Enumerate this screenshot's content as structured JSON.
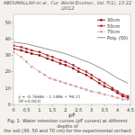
{
  "chart_data": {
    "type": "line",
    "title": "ABOUMALLAH et al., Cur. World Environ., Vol. P(1), 13-22 (2012",
    "x_label": "pF",
    "annotations": [
      "y = -0.7668x - 1.1486 + 94.21\n(R²=0.003)",
      "Fig. 1: Water retention curves (pF curves) at different depths of\nthe soil (30, 50 and 70 cm) for the experimental orchard"
    ],
    "xlim": [
      0,
      4.5
    ],
    "ylim": [
      0,
      55
    ],
    "xticks": [
      0,
      {
        "value": 0.5,
        "label": "0,5"
      },
      1,
      {
        "value": 1.5,
        "label": "1,5"
      },
      2,
      {
        "value": 2.5,
        "label": "2,5"
      },
      3,
      {
        "value": 3.5,
        "label": "3,5"
      },
      4,
      {
        "value": 4.5,
        "label": "4,5"
      }
    ],
    "yticks": [
      0,
      10,
      20,
      30,
      40,
      50
    ],
    "grid": false,
    "legend": "upper right",
    "series": [
      {
        "name": "30cm",
        "color": "#8B1010",
        "marker": "square",
        "line_style": "solid",
        "x": [
          0.0,
          0.3,
          0.5,
          0.7,
          1.0,
          1.3,
          1.5,
          1.8,
          2.0,
          2.3,
          2.5,
          2.8,
          3.0,
          3.3,
          3.5,
          3.8,
          4.0,
          4.2,
          4.4
        ],
        "values": [
          34,
          33,
          32,
          31,
          30,
          28,
          27,
          25,
          24,
          22,
          20,
          18,
          16,
          13,
          11,
          9,
          7,
          5,
          4
        ]
      },
      {
        "name": "50cm",
        "color": "#B03030",
        "marker": "square",
        "line_style": "solid",
        "x": [
          0.0,
          0.3,
          0.5,
          0.7,
          1.0,
          1.3,
          1.5,
          1.8,
          2.0,
          2.3,
          2.5,
          2.8,
          3.0,
          3.3,
          3.5,
          3.8,
          4.0,
          4.2,
          4.4
        ],
        "values": [
          36,
          35,
          34,
          33,
          32,
          30,
          29,
          27,
          26,
          24,
          22,
          20,
          18,
          15,
          13,
          10,
          8,
          6,
          5
        ]
      },
      {
        "name": "70cm",
        "color": "#D4A0A0",
        "marker": "square",
        "line_style": "dashed",
        "x": [
          0.0,
          0.3,
          0.5,
          0.7,
          1.0,
          1.2,
          1.4,
          1.6,
          1.8,
          2.0,
          2.2,
          2.4,
          2.6,
          2.8,
          3.0,
          3.3,
          3.5,
          3.8,
          4.0,
          4.2,
          4.4
        ],
        "values": [
          32,
          29,
          26,
          23,
          20,
          18,
          16,
          15,
          14,
          13,
          12,
          11,
          10,
          9,
          8,
          7,
          6,
          5,
          4,
          3,
          3
        ]
      },
      {
        "name": "Poly. (50)",
        "color": "#888888",
        "marker": "none",
        "line_style": "solid",
        "x": [
          0.0,
          0.5,
          1.0,
          1.5,
          2.0,
          2.5,
          3.0,
          3.5,
          4.0,
          4.4
        ],
        "values": [
          38,
          37,
          35,
          33,
          31,
          28,
          25,
          21,
          16,
          13
        ]
      }
    ]
  }
}
